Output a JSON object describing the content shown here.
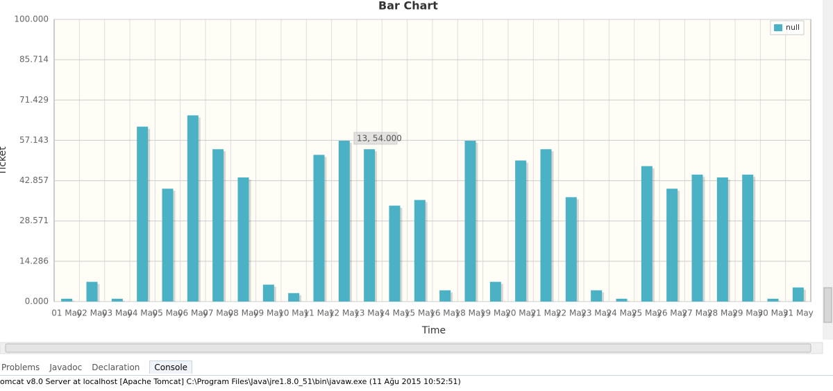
{
  "chart_data": {
    "type": "bar",
    "title": "Bar Chart",
    "x_label": "Time",
    "y_label": "Ticket",
    "categories": [
      "01 May",
      "02 May",
      "03 May",
      "04 May",
      "05 May",
      "06 May",
      "07 May",
      "08 May",
      "09 May",
      "10 May",
      "11 May",
      "12 May",
      "13 May",
      "14 May",
      "15 May",
      "16 May",
      "18 May",
      "19 May",
      "20 May",
      "21 May",
      "22 May",
      "23 May",
      "24 May",
      "25 May",
      "26 May",
      "27 May",
      "28 May",
      "29 May",
      "30 May",
      "31 May"
    ],
    "series": [
      {
        "name": "null",
        "color": "#4bb2c5",
        "values": [
          1,
          7,
          1,
          62,
          40,
          66,
          54,
          44,
          6,
          3,
          52,
          57,
          54,
          34,
          36,
          4,
          57,
          7,
          50,
          54,
          37,
          4,
          1,
          48,
          40,
          45,
          44,
          45,
          1,
          5
        ]
      }
    ],
    "ylim": [
      0,
      100
    ],
    "yticks": [
      {
        "value": 0,
        "label": "0.000"
      },
      14.286,
      28.571,
      42.857,
      57.143,
      71.429,
      85.714,
      {
        "value": 100,
        "label": "100.000"
      }
    ],
    "grid": true,
    "legend": "top-right",
    "annotation": "13, 54.000"
  },
  "tabs": [
    "Problems",
    "Javadoc",
    "Declaration",
    "Console"
  ],
  "console_line": "omcat v8.0 Server at localhost [Apache Tomcat] C:\\Program Files\\Java\\jre1.8.0_51\\bin\\javaw.exe (11 Ağu 2015 10:52:51)"
}
